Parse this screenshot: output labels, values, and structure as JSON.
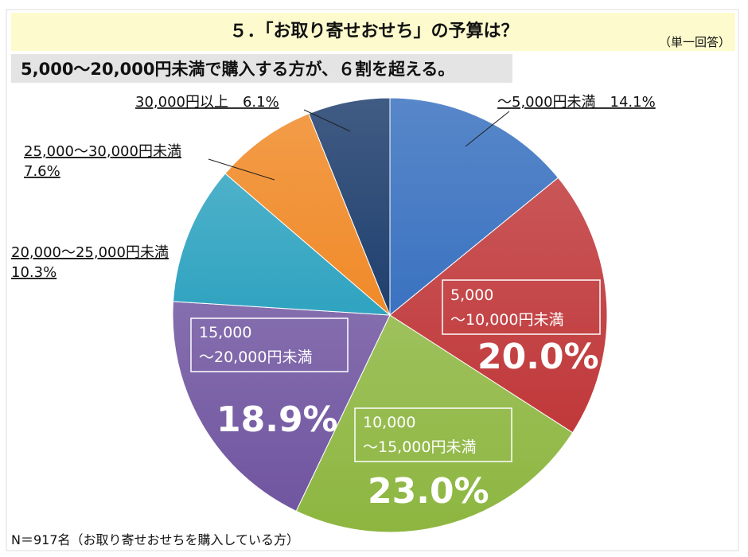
{
  "header": {
    "title": "５．「お取り寄せおせち」の予算は？",
    "note": "（単一回答）",
    "subtitle": "5,000～20,000円未満で購入する方が、６割を超える。"
  },
  "footer": {
    "sample": "N＝917名（お取り寄せおせちを購入している方）"
  },
  "chart_data": {
    "type": "pie",
    "title": "「お取り寄せおせち」の予算は？",
    "start": "top, clockwise",
    "slices": [
      {
        "label": "～5,000円未満",
        "value": 14.1,
        "color": "#3a72c0",
        "line1": "～5,000円未満　14.1%"
      },
      {
        "label": "5,000～10,000円未満",
        "value": 20.0,
        "color": "#c0383a",
        "line1": "5,000",
        "line2": "～10,000円未満",
        "pct": "20.0%"
      },
      {
        "label": "10,000～15,000円未満",
        "value": 23.0,
        "color": "#8db640",
        "line1": "10,000",
        "line2": "～15,000円未満",
        "pct": "23.0%"
      },
      {
        "label": "15,000～20,000円未満",
        "value": 18.9,
        "color": "#7055a0",
        "line1": "15,000",
        "line2": "～20,000円未満",
        "pct": "18.9%"
      },
      {
        "label": "20,000～25,000円未満",
        "value": 10.3,
        "color": "#2fa3c0",
        "line1": "20,000～25,000円未満",
        "line2": "10.3%"
      },
      {
        "label": "25,000～30,000円未満",
        "value": 7.6,
        "color": "#f08a28",
        "line1": "25,000～30,000円未満",
        "line2": "7.6%"
      },
      {
        "label": "30,000円以上",
        "value": 6.1,
        "color": "#1f3f6e",
        "line1": "30,000円以上　6.1%"
      }
    ]
  }
}
